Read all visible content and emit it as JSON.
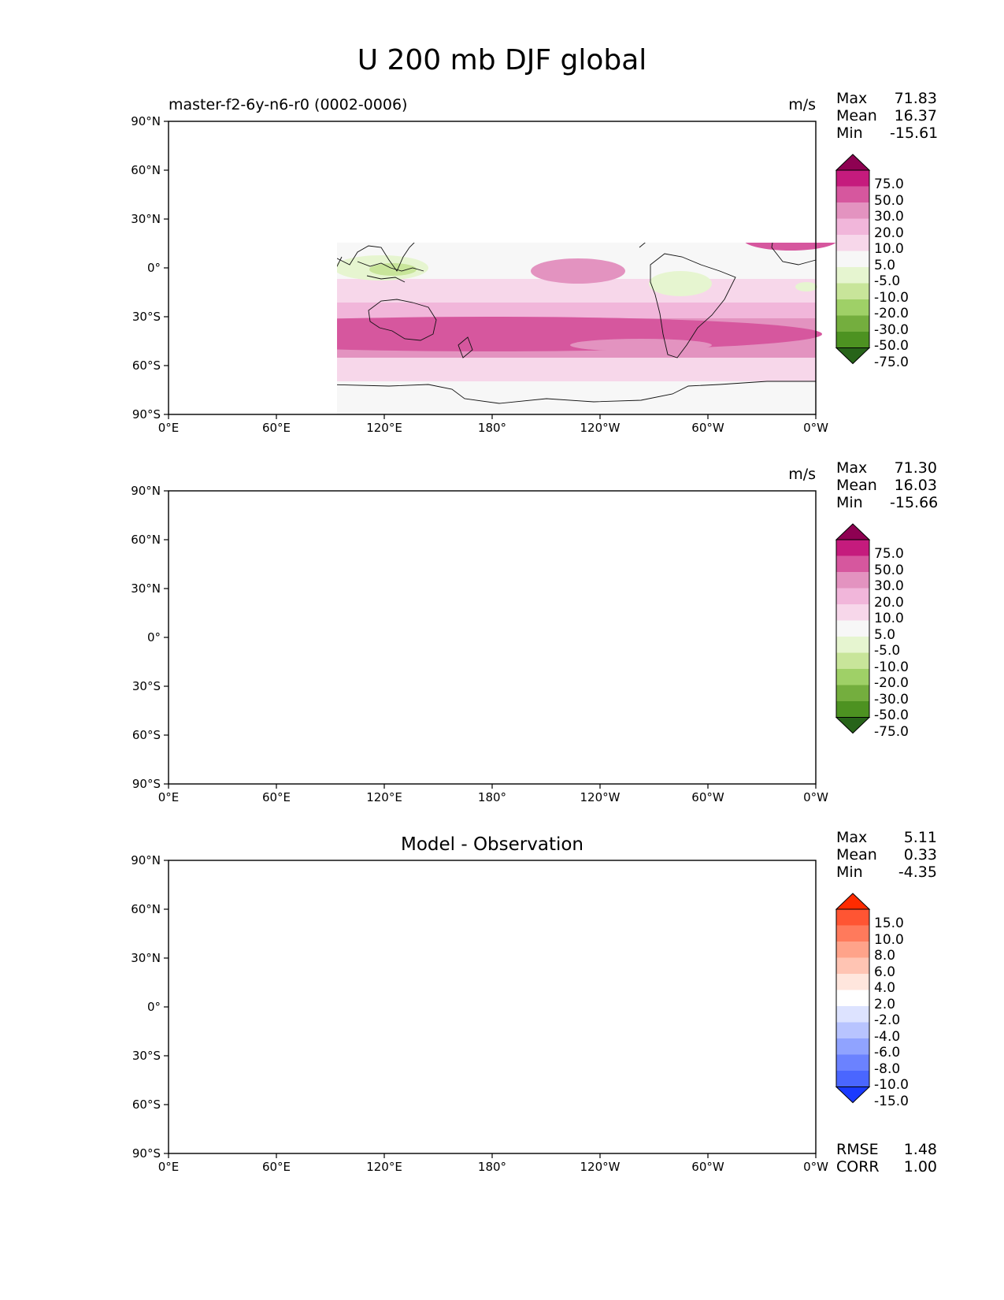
{
  "title": "U 200 mb DJF global",
  "panels": [
    {
      "id": "test",
      "subtitle": "master-f2-6y-n6-r0 (0002-0006)",
      "center_title": "",
      "units": "m/s",
      "stats": [
        {
          "label": "Max",
          "value": "71.83"
        },
        {
          "label": "Mean",
          "value": "16.37"
        },
        {
          "label": "Min",
          "value": "-15.61"
        }
      ],
      "colorbar": {
        "labels": [
          "75.0",
          "50.0",
          "30.0",
          "20.0",
          "10.0",
          "5.0",
          "-5.0",
          "-10.0",
          "-20.0",
          "-30.0",
          "-50.0",
          "-75.0"
        ],
        "colors": [
          "#8e0152",
          "#c51b7d",
          "#d6579e",
          "#e393c0",
          "#f1b6da",
          "#f7d7ea",
          "#f7f7f7",
          "#e6f5d0",
          "#c8e59a",
          "#9fd067",
          "#74ae3e",
          "#4d9221",
          "#276419"
        ]
      },
      "footer_stats": []
    },
    {
      "id": "reference",
      "subtitle": "",
      "center_title": "",
      "units": "m/s",
      "stats": [
        {
          "label": "Max",
          "value": "71.30"
        },
        {
          "label": "Mean",
          "value": "16.03"
        },
        {
          "label": "Min",
          "value": "-15.66"
        }
      ],
      "colorbar": {
        "labels": [
          "75.0",
          "50.0",
          "30.0",
          "20.0",
          "10.0",
          "5.0",
          "-5.0",
          "-10.0",
          "-20.0",
          "-30.0",
          "-50.0",
          "-75.0"
        ],
        "colors": [
          "#8e0152",
          "#c51b7d",
          "#d6579e",
          "#e393c0",
          "#f1b6da",
          "#f7d7ea",
          "#f7f7f7",
          "#e6f5d0",
          "#c8e59a",
          "#9fd067",
          "#74ae3e",
          "#4d9221",
          "#276419"
        ]
      },
      "footer_stats": []
    },
    {
      "id": "diff",
      "subtitle": "",
      "center_title": "Model - Observation",
      "units": "",
      "stats": [
        {
          "label": "Max",
          "value": "5.11"
        },
        {
          "label": "Mean",
          "value": "0.33"
        },
        {
          "label": "Min",
          "value": "-4.35"
        }
      ],
      "colorbar": {
        "labels": [
          "15.0",
          "10.0",
          "8.0",
          "6.0",
          "4.0",
          "2.0",
          "-2.0",
          "-4.0",
          "-6.0",
          "-8.0",
          "-10.0",
          "-15.0"
        ],
        "colors": [
          "#ff2b00",
          "#ff5533",
          "#ff7a5c",
          "#ffa38a",
          "#ffc4b3",
          "#ffe6dd",
          "#ffffff",
          "#dde3ff",
          "#b8c4ff",
          "#90a3ff",
          "#6b82ff",
          "#4a66ff",
          "#1a3aff"
        ]
      },
      "footer_stats": [
        {
          "label": "RMSE",
          "value": "1.48"
        },
        {
          "label": "CORR",
          "value": "1.00"
        }
      ]
    }
  ],
  "axes": {
    "lon_ticks": [
      "0°E",
      "60°E",
      "120°E",
      "180°",
      "120°W",
      "60°W",
      "0°W"
    ],
    "lat_ticks": [
      "90°N",
      "60°N",
      "30°N",
      "0°",
      "30°S",
      "60°S",
      "90°S"
    ]
  }
}
